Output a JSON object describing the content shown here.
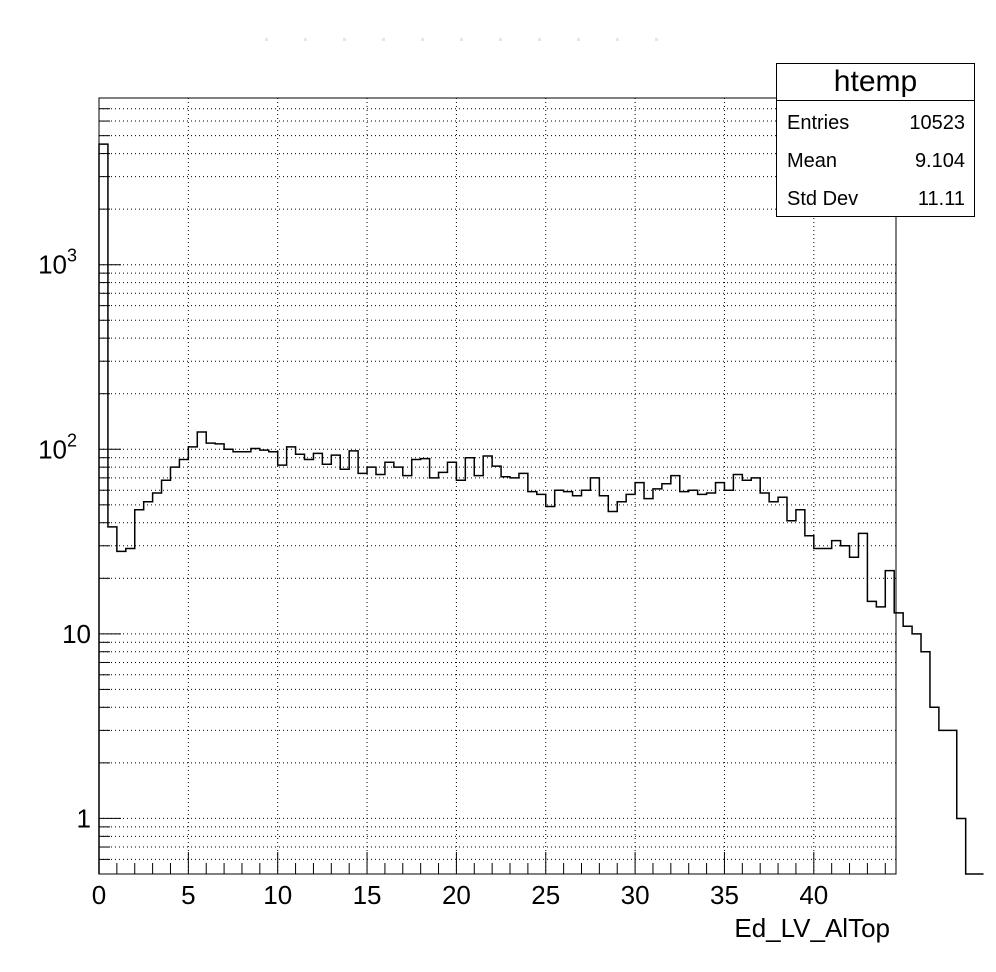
{
  "chart_data": {
    "type": "histogram",
    "title": "",
    "xlabel": "Ed_LV_AlTop",
    "ylabel": "",
    "yscale": "log",
    "xlim": [
      0,
      44.6
    ],
    "ylim": [
      0.5,
      8000
    ],
    "grid": true,
    "x_ticks": [
      "0",
      "5",
      "10",
      "15",
      "20",
      "25",
      "30",
      "35",
      "40"
    ],
    "y_ticks": [
      {
        "label": "1",
        "value": 1
      },
      {
        "label": "10",
        "value": 10
      },
      {
        "label": "10",
        "exp": "2",
        "value": 100
      },
      {
        "label": "10",
        "exp": "3",
        "value": 1000
      }
    ],
    "bin_width": 0.5,
    "bin_start": 0,
    "values": [
      4500,
      38,
      28,
      29,
      47,
      52,
      58,
      68,
      80,
      88,
      103,
      124,
      108,
      107,
      100,
      97,
      97,
      101,
      99,
      97,
      82,
      103,
      94,
      88,
      95,
      83,
      93,
      78,
      98,
      74,
      80,
      73,
      85,
      80,
      72,
      88,
      89,
      70,
      75,
      85,
      68,
      90,
      72,
      92,
      81,
      71,
      70,
      74,
      59,
      57,
      49,
      60,
      59,
      56,
      60,
      70,
      56,
      46,
      52,
      57,
      66,
      54,
      61,
      65,
      72,
      59,
      60,
      57,
      58,
      66,
      60,
      73,
      68,
      70,
      58,
      52,
      55,
      41,
      47,
      34,
      29,
      29,
      32,
      30,
      26,
      35,
      15,
      14,
      22,
      13,
      11,
      10,
      8,
      4,
      3,
      3,
      1,
      0,
      0
    ]
  },
  "stats": {
    "title": "htemp",
    "rows": [
      {
        "key": "Entries",
        "value": "10523"
      },
      {
        "key": "Mean",
        "value": "9.104"
      },
      {
        "key": "Std Dev",
        "value": "11.11"
      }
    ]
  }
}
